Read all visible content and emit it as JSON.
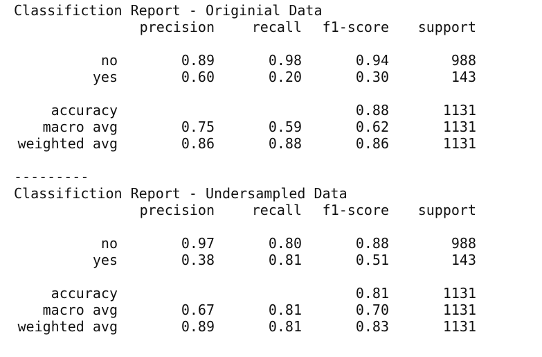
{
  "reports": [
    {
      "title": "Classifiction Report - Originial Data",
      "headers": [
        "precision",
        "recall",
        "f1-score",
        "support"
      ],
      "class_rows": [
        {
          "label": "no",
          "precision": "0.89",
          "recall": "0.98",
          "f1": "0.94",
          "support": "988"
        },
        {
          "label": "yes",
          "precision": "0.60",
          "recall": "0.20",
          "f1": "0.30",
          "support": "143"
        }
      ],
      "summary_rows": [
        {
          "label": "accuracy",
          "precision": "",
          "recall": "",
          "f1": "0.88",
          "support": "1131"
        },
        {
          "label": "macro avg",
          "precision": "0.75",
          "recall": "0.59",
          "f1": "0.62",
          "support": "1131"
        },
        {
          "label": "weighted avg",
          "precision": "0.86",
          "recall": "0.88",
          "f1": "0.86",
          "support": "1131"
        }
      ]
    },
    {
      "title": "Classifiction Report - Undersampled Data",
      "headers": [
        "precision",
        "recall",
        "f1-score",
        "support"
      ],
      "class_rows": [
        {
          "label": "no",
          "precision": "0.97",
          "recall": "0.80",
          "f1": "0.88",
          "support": "988"
        },
        {
          "label": "yes",
          "precision": "0.38",
          "recall": "0.81",
          "f1": "0.51",
          "support": "143"
        }
      ],
      "summary_rows": [
        {
          "label": "accuracy",
          "precision": "",
          "recall": "",
          "f1": "0.81",
          "support": "1131"
        },
        {
          "label": "macro avg",
          "precision": "0.67",
          "recall": "0.81",
          "f1": "0.70",
          "support": "1131"
        },
        {
          "label": "weighted avg",
          "precision": "0.89",
          "recall": "0.81",
          "f1": "0.83",
          "support": "1131"
        }
      ]
    }
  ],
  "separator": "---------"
}
